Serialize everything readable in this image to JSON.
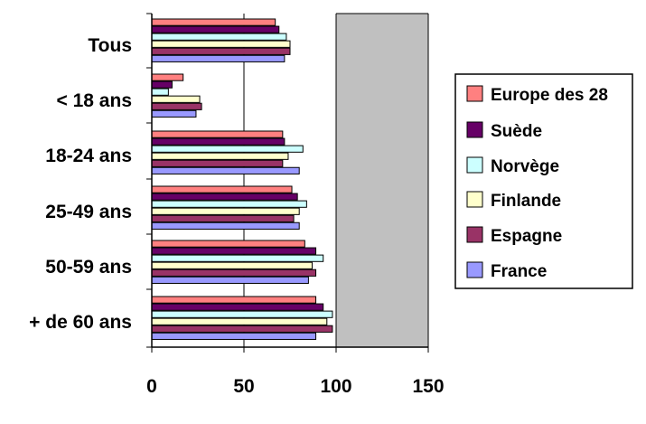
{
  "chart_data": {
    "type": "bar",
    "orientation": "horizontal",
    "categories": [
      "Tous",
      "< 18 ans",
      "18-24 ans",
      "25-49 ans",
      "50-59 ans",
      "+ de 60 ans"
    ],
    "series": [
      {
        "name": "Europe des 28",
        "color": "#ff8080",
        "values": [
          67,
          17,
          71,
          76,
          83,
          89
        ]
      },
      {
        "name": "Suède",
        "color": "#660066",
        "values": [
          69,
          11,
          72,
          79,
          89,
          93
        ]
      },
      {
        "name": "Norvège",
        "color": "#ccffff",
        "values": [
          73,
          9,
          82,
          84,
          93,
          98
        ]
      },
      {
        "name": "Finlande",
        "color": "#ffffcc",
        "values": [
          75,
          26,
          74,
          80,
          87,
          95
        ]
      },
      {
        "name": "Espagne",
        "color": "#993366",
        "values": [
          75,
          27,
          71,
          77,
          89,
          98
        ]
      },
      {
        "name": "France",
        "color": "#9999ff",
        "values": [
          72,
          24,
          80,
          80,
          85,
          89
        ]
      }
    ],
    "xlim": [
      0,
      150
    ],
    "xticks": [
      "0",
      "50",
      "100",
      "150"
    ],
    "shaded_region_from": 100,
    "gridlines": [
      0,
      50,
      100
    ],
    "legend_position": "right",
    "title": "",
    "xlabel": "",
    "ylabel": ""
  }
}
